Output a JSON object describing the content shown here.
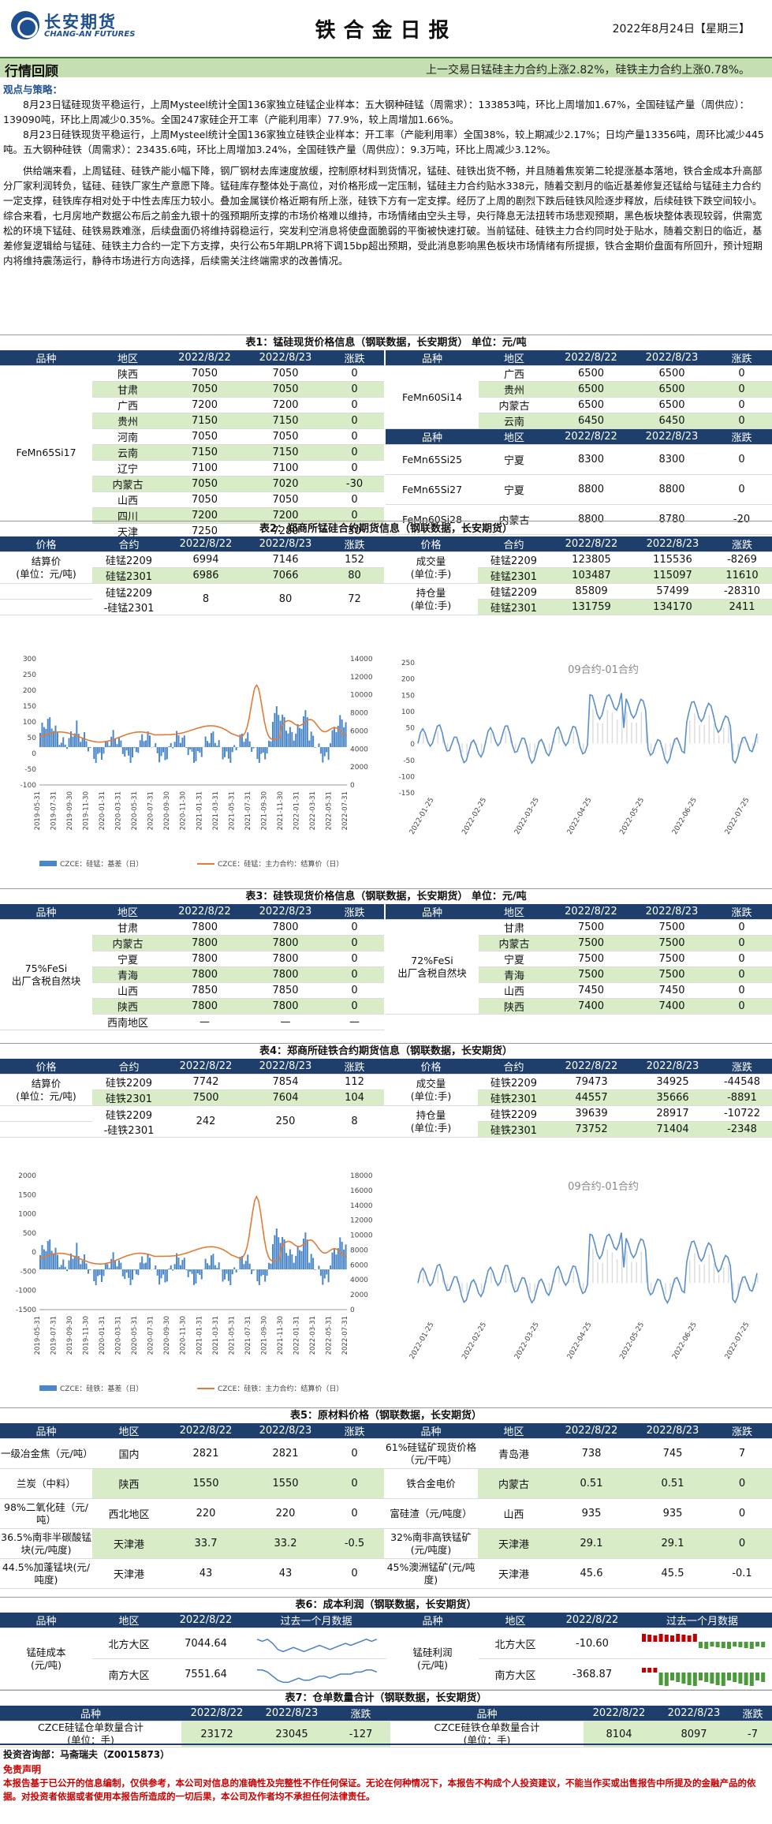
{
  "header": {
    "company_cn": "长安期货",
    "company_en": "CHANG-AN FUTURES",
    "title": "铁合金日报",
    "date": "2022年8月24日【星期三】"
  },
  "review": {
    "label": "行情回顾",
    "summary": "上一交易日锰硅主力合约上涨2.82%，硅铁主力合约上涨0.78%。"
  },
  "strategy": {
    "heading": "观点与策略：",
    "p1": "8月23日锰硅现货平稳运行，上周Mysteel统计全国136家独立硅锰企业样本：五大钢种硅锰（周需求）：133853吨，环比上周增加1.67%，全国硅锰产量（周供应）：139090吨，环比上周减少0.35%。全国247家硅企开工率（产能利用率）77.9%，较上周增加1.66%。",
    "p2": "8月23日硅铁现货平稳运行，上周Mysteel统计全国136家独立硅铁企业样本：开工率（产能利用率）全国38%，较上期减少2.17%；日均产量13356吨，周环比减少445吨。五大钢种硅铁（周需求）：23435.6吨，环比上周增加3.24%，全国硅铁产量（周供应）：9.3万吨，环比上周减少3.12%。",
    "p3": "供给端来看，上周锰硅、硅铁产能小幅下降，钢厂钢材去库速度放缓，控制原材料到货情况，锰硅、硅铁出货不畅，并且随着焦炭第二轮提涨基本落地，铁合金成本升高部分厂家利润转负，锰硅、硅铁厂家生产意愿下降。锰硅库存整体处于高位，对价格形成一定压制，锰硅主力合约贴水338元，随着交割月的临近基差修复还锰给与锰硅主力合约一定支撑，硅铁库存相对处于中性去库压力较小。叠加金属镁价格近期有所上涨，硅铁下方有一定支撑。经历了上周的剧烈下跌后硅铁风险逐步释放，后续硅铁下跌空间较小。综合来看，七月房地产数据公布后之前金九银十的强预期所支撑的市场价格难以维持，市场情绪由空头主导，央行降息无法扭转市场悲观预期，黑色板块整体表现较弱，供需宽松的环境下锰硅、硅铁易跌难涨，后续盘面仍将维持弱稳运行，突发利空消息将使盘面脆弱的平衡被快速打破。当前锰硅、硅铁主力合约同时处于贴水，随着交割日的临近，基差修复逻辑给与锰硅、硅铁主力合约一定下方支撑，央行公布5年期LPR将下调15bp超出预期，受此消息影响黑色板块市场情绪有所提振，铁合金期价盘面有所回升，预计短期内将维持震荡运行，静待市场进行方向选择，后续需关注终端需求的改善情况。"
  },
  "t1": {
    "caption": "表1：锰硅现货价格信息（钢联数据，长安期货） 单位：元/吨",
    "cols": [
      "品种",
      "地区",
      "2022/8/22",
      "2022/8/23",
      "涨跌"
    ],
    "left_name": "FeMn65Si17",
    "left": [
      [
        "陕西",
        "7050",
        "7050",
        "0"
      ],
      [
        "甘肃",
        "7050",
        "7050",
        "0"
      ],
      [
        "广西",
        "7200",
        "7200",
        "0"
      ],
      [
        "贵州",
        "7150",
        "7150",
        "0"
      ],
      [
        "河南",
        "7050",
        "7050",
        "0"
      ],
      [
        "云南",
        "7150",
        "7150",
        "0"
      ],
      [
        "辽宁",
        "7100",
        "7100",
        "0"
      ],
      [
        "内蒙古",
        "7050",
        "7020",
        "-30"
      ],
      [
        "山西",
        "7050",
        "7050",
        "0"
      ],
      [
        "四川",
        "7200",
        "7200",
        "0"
      ],
      [
        "天津",
        "7250",
        "7280",
        "30"
      ]
    ],
    "r1_name": "FeMn60Si14",
    "r1": [
      [
        "广西",
        "6500",
        "6500",
        "0"
      ],
      [
        "贵州",
        "6500",
        "6500",
        "0"
      ],
      [
        "内蒙古",
        "6500",
        "6500",
        "0"
      ],
      [
        "云南",
        "6450",
        "6450",
        "0"
      ]
    ],
    "r2": [
      [
        "FeMn65Si25",
        "宁夏",
        "8300",
        "8300",
        "0"
      ],
      [
        "FeMn65Si27",
        "宁夏",
        "8800",
        "8800",
        "0"
      ],
      [
        "FeMn60Si28",
        "内蒙古",
        "8800",
        "8780",
        "-20"
      ]
    ]
  },
  "t2": {
    "caption": "表2：郑商所锰硅合约期货信息（钢联数据，长安期货）",
    "cols": [
      "价格",
      "合约",
      "2022/8/22",
      "2022/8/23",
      "涨跌",
      "价格",
      "合约",
      "2022/8/22",
      "2022/8/23",
      "涨跌"
    ],
    "settle": "结算价\n(单位：元/吨)",
    "vol": "成交量\n(单位:手)",
    "oi": "持仓量\n(单位:手)",
    "rows": [
      [
        "硅锰2209",
        "6994",
        "7146",
        "152"
      ],
      [
        "硅锰2301",
        "6986",
        "7066",
        "80"
      ],
      [
        "硅锰2209\n-硅锰2301",
        "8",
        "80",
        "72"
      ]
    ],
    "vrows": [
      [
        "硅锰2209",
        "123805",
        "115536",
        "-8269"
      ],
      [
        "硅锰2301",
        "103487",
        "115097",
        "11610"
      ],
      [
        "硅锰2209",
        "85809",
        "57499",
        "-28310"
      ],
      [
        "硅锰2301",
        "131759",
        "134170",
        "2411"
      ]
    ]
  },
  "chart1": {
    "legend_basis": "CZCE：硅锰：基差（日）",
    "legend_settle": "CZCE：硅锰：主力合约：结算价（日）",
    "title2": "09合约-01合约",
    "ly": [
      "300",
      "250",
      "200",
      "150",
      "100",
      "50",
      "0",
      "-50",
      "-100"
    ],
    "ry": [
      "14000",
      "12000",
      "10000",
      "8000",
      "6000",
      "4000",
      "2000",
      "0"
    ],
    "x": [
      "2019-05-31",
      "2019-07-31",
      "2019-09-30",
      "2019-11-30",
      "2020-01-31",
      "2020-03-31",
      "2020-05-31",
      "2020-07-31",
      "2020-09-30",
      "2020-11-30",
      "2021-01-31",
      "2021-03-31",
      "2021-05-31",
      "2021-07-31",
      "2021-09-30",
      "2021-11-30",
      "2022-01-31",
      "2022-03-31",
      "2022-05-31",
      "2022-07-31"
    ],
    "y2": [
      "250",
      "200",
      "150",
      "100",
      "50",
      "0",
      "-50",
      "-100",
      "-150"
    ],
    "x2": [
      "2022-01-25",
      "2022-02-25",
      "2022-03-25",
      "2022-04-25",
      "2022-05-25",
      "2022-06-25",
      "2022-07-25"
    ]
  },
  "t3": {
    "caption": "表3：硅铁现货价格信息（钢联数据，长安期货） 单位：元/吨",
    "cols": [
      "品种",
      "地区",
      "2022/8/22",
      "2022/8/23",
      "涨跌"
    ],
    "left_name": "75%FeSi\n出厂含税自然块",
    "right_name": "72%FeSi\n出厂含税自然块",
    "left": [
      [
        "甘肃",
        "7800",
        "7800",
        "0"
      ],
      [
        "内蒙古",
        "7800",
        "7800",
        "0"
      ],
      [
        "宁夏",
        "7800",
        "7800",
        "0"
      ],
      [
        "青海",
        "7800",
        "7800",
        "0"
      ],
      [
        "山西",
        "7850",
        "7850",
        "0"
      ],
      [
        "陕西",
        "7800",
        "7800",
        "0"
      ],
      [
        "西南地区",
        "—",
        "—",
        "—"
      ]
    ],
    "right": [
      [
        "甘肃",
        "7500",
        "7500",
        "0"
      ],
      [
        "内蒙古",
        "7500",
        "7500",
        "0"
      ],
      [
        "宁夏",
        "7500",
        "7500",
        "0"
      ],
      [
        "青海",
        "7500",
        "7500",
        "0"
      ],
      [
        "山西",
        "7450",
        "7450",
        "0"
      ],
      [
        "陕西",
        "7400",
        "7400",
        "0"
      ]
    ]
  },
  "t4": {
    "caption": "表4：郑商所硅铁合约期货信息（钢联数据，长安期货）",
    "rows": [
      [
        "硅铁2209",
        "7742",
        "7854",
        "112"
      ],
      [
        "硅铁2301",
        "7500",
        "7604",
        "104"
      ],
      [
        "硅铁2209\n-硅铁2301",
        "242",
        "250",
        "8"
      ]
    ],
    "vrows": [
      [
        "硅铁2209",
        "79473",
        "34925",
        "-44548"
      ],
      [
        "硅铁2301",
        "44557",
        "35666",
        "-8891"
      ],
      [
        "硅铁2209",
        "39639",
        "28917",
        "-10722"
      ],
      [
        "硅铁2301",
        "73752",
        "71404",
        "-2348"
      ]
    ]
  },
  "chart2": {
    "legend_basis": "CZCE：硅铁：基差（日）",
    "legend_settle": "CZCE：硅铁：主力合约：结算价（日）",
    "title2": "09合约-01合约",
    "ly": [
      "2000",
      "1500",
      "1000",
      "500",
      "0",
      "-500",
      "-1000",
      "-1500"
    ],
    "ry": [
      "18000",
      "16000",
      "14000",
      "12000",
      "10000",
      "8000",
      "6000",
      "4000",
      "2000",
      "0"
    ],
    "x": [
      "2019-05-31",
      "2019-07-31",
      "2019-09-30",
      "2019-11-30",
      "2020-01-31",
      "2020-03-31",
      "2020-05-31",
      "2020-07-31",
      "2020-09-30",
      "2020-11-30",
      "2021-01-31",
      "2021-03-31",
      "2021-05-31",
      "2021-07-31",
      "2021-09-30",
      "2021-11-30",
      "2022-01-31",
      "2022-03-31",
      "2022-05-31",
      "2022-07-31"
    ],
    "x2": [
      "2022-01-25",
      "2022-02-25",
      "2022-03-25",
      "2022-04-25",
      "2022-05-25",
      "2022-06-25",
      "2022-07-25"
    ]
  },
  "t5": {
    "caption": "表5：原材料价格（钢联数据，长安期货）",
    "cols": [
      "品种",
      "地区",
      "2022/8/22",
      "2022/8/23",
      "涨跌"
    ],
    "rows": [
      [
        "一级冶金焦（元/吨）",
        "国内",
        "2821",
        "2821",
        "0",
        "61%硅锰矿现货价格（元/干吨）",
        "青岛港",
        "738",
        "745",
        "7"
      ],
      [
        "兰炭（中料）",
        "陕西",
        "1550",
        "1550",
        "0",
        "铁合金电价",
        "内蒙古",
        "0.51",
        "0.51",
        "0"
      ],
      [
        "98%二氧化硅（元/吨）",
        "西北地区",
        "220",
        "220",
        "0",
        "富硅渣（元/吨度）",
        "山西",
        "935",
        "935",
        "0"
      ],
      [
        "36.5%南非半碳酸锰块(元/吨度)",
        "天津港",
        "33.7",
        "33.2",
        "-0.5",
        "32%南非高铁锰矿(元/吨度)",
        "天津港",
        "29.1",
        "29.1",
        "0"
      ],
      [
        "44.5%加蓬锰块(元/吨度)",
        "天津港",
        "43",
        "43",
        "0",
        "45%澳洲锰矿(元/吨度)",
        "天津港",
        "45.6",
        "45.5",
        "-0.1"
      ]
    ]
  },
  "t6": {
    "caption": "表6：成本利润（钢联数据，长安期货）",
    "cols": [
      "品种",
      "地区",
      "2022/8/22",
      "过去一个月数据",
      "品种",
      "地区",
      "2022/8/22",
      "过去一个月数据"
    ],
    "cost_name": "锰硅成本\n(元/吨)",
    "profit_name": "锰硅利润\n(元/吨)",
    "cost": [
      [
        "北方大区",
        "7044.64"
      ],
      [
        "南方大区",
        "7551.64"
      ]
    ],
    "profit": [
      [
        "北方大区",
        "-10.60"
      ],
      [
        "南方大区",
        "-368.87"
      ]
    ]
  },
  "t7": {
    "caption": "表7：仓单数量合计（钢联数据，长安期货）",
    "cols": [
      "品种",
      "2022/8/22",
      "2022/8/23",
      "涨跌",
      "品种",
      "2022/8/22",
      "2022/8/23",
      "涨跌"
    ],
    "l_name": "CZCE硅锰仓单数量合计\n(单位：手)",
    "l": [
      "23172",
      "23045",
      "-127"
    ],
    "r_name": "CZCE硅铁仓单数量合计\n(单位：手)",
    "r": [
      "8104",
      "8097",
      "-7"
    ]
  },
  "footer": {
    "analyst": "投资咨询部：马斋瑞夫（Z0015873）",
    "disclaimer_title": "免责声明",
    "disclaimer": "本报告基于已公开的信息编制，仅供参考，本公司对信息的准确性及完整性不作任何保证。无论在何种情况下，本报告不构成个人投资建议，不能当作买或出售报告中所提及的金融产品的依据。对投资者依据或者使用本报告所造成的一切后果，本公司及作者均不承担任何法律责任。"
  }
}
